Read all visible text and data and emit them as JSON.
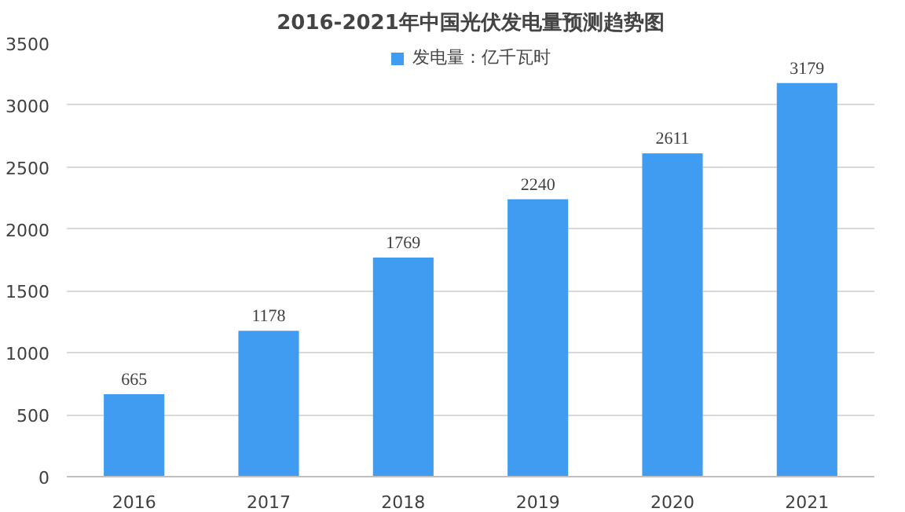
{
  "chart_data": {
    "type": "bar",
    "title": "2016-2021年中国光伏发电量预测趋势图",
    "categories": [
      "2016",
      "2017",
      "2018",
      "2019",
      "2020",
      "2021"
    ],
    "series": [
      {
        "name": "发电量：亿千瓦时",
        "color": "#3f9cf0",
        "values": [
          665,
          1178,
          1769,
          2240,
          2611,
          3179
        ]
      }
    ],
    "ylim": [
      0,
      3500
    ],
    "yticks": [
      0,
      500,
      1000,
      1500,
      2000,
      2500,
      3000,
      3500
    ],
    "grid": "y",
    "legend": "top",
    "data_labels": true
  }
}
